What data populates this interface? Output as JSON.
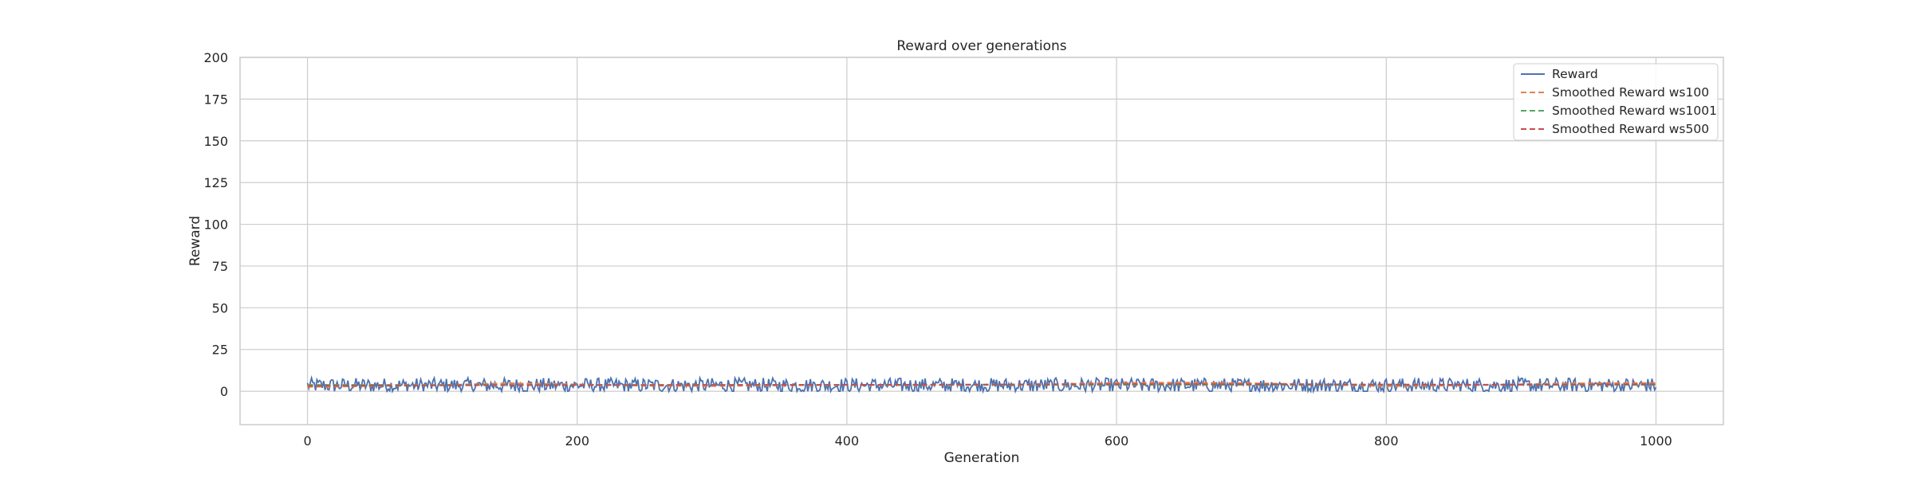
{
  "chart_data": {
    "type": "line",
    "title": "Reward over generations",
    "xlabel": "Generation",
    "ylabel": "Reward",
    "xlim": [
      -50,
      1050
    ],
    "ylim": [
      -20,
      200
    ],
    "xticks": [
      0,
      200,
      400,
      600,
      800,
      1000
    ],
    "yticks": [
      0,
      25,
      50,
      75,
      100,
      125,
      150,
      175,
      200
    ],
    "grid": true,
    "legend_position": "top-right",
    "series": [
      {
        "name": "Reward",
        "style": "solid",
        "color": "#4c72b0",
        "x_range": [
          0,
          1000
        ],
        "approx_mean": 3.5,
        "approx_min": 0,
        "approx_max": 8
      },
      {
        "name": "Smoothed Reward ws100",
        "style": "dashed",
        "color": "#dd8452",
        "x": [
          0,
          50,
          100,
          150,
          200,
          250,
          300,
          350,
          400,
          450,
          500,
          550,
          600,
          650,
          700,
          750,
          800,
          850,
          900,
          950,
          1000
        ],
        "values": [
          2.6,
          3.1,
          3.7,
          4.8,
          4.1,
          3.3,
          3.1,
          3.5,
          3.8,
          3.6,
          3.9,
          4.2,
          5.0,
          5.2,
          4.8,
          4.1,
          3.0,
          3.4,
          4.2,
          4.8,
          5.0
        ]
      },
      {
        "name": "Smoothed Reward ws1001",
        "style": "dashed",
        "color": "#55a868",
        "x": [
          0,
          1000
        ],
        "values": [
          3.8,
          3.8
        ]
      },
      {
        "name": "Smoothed Reward ws500",
        "style": "dashed",
        "color": "#c44e52",
        "x": [
          0,
          125,
          250,
          375,
          500,
          625,
          750,
          875,
          1000
        ],
        "values": [
          3.2,
          3.6,
          3.7,
          3.8,
          4.0,
          4.3,
          4.1,
          3.9,
          4.2
        ]
      }
    ]
  }
}
